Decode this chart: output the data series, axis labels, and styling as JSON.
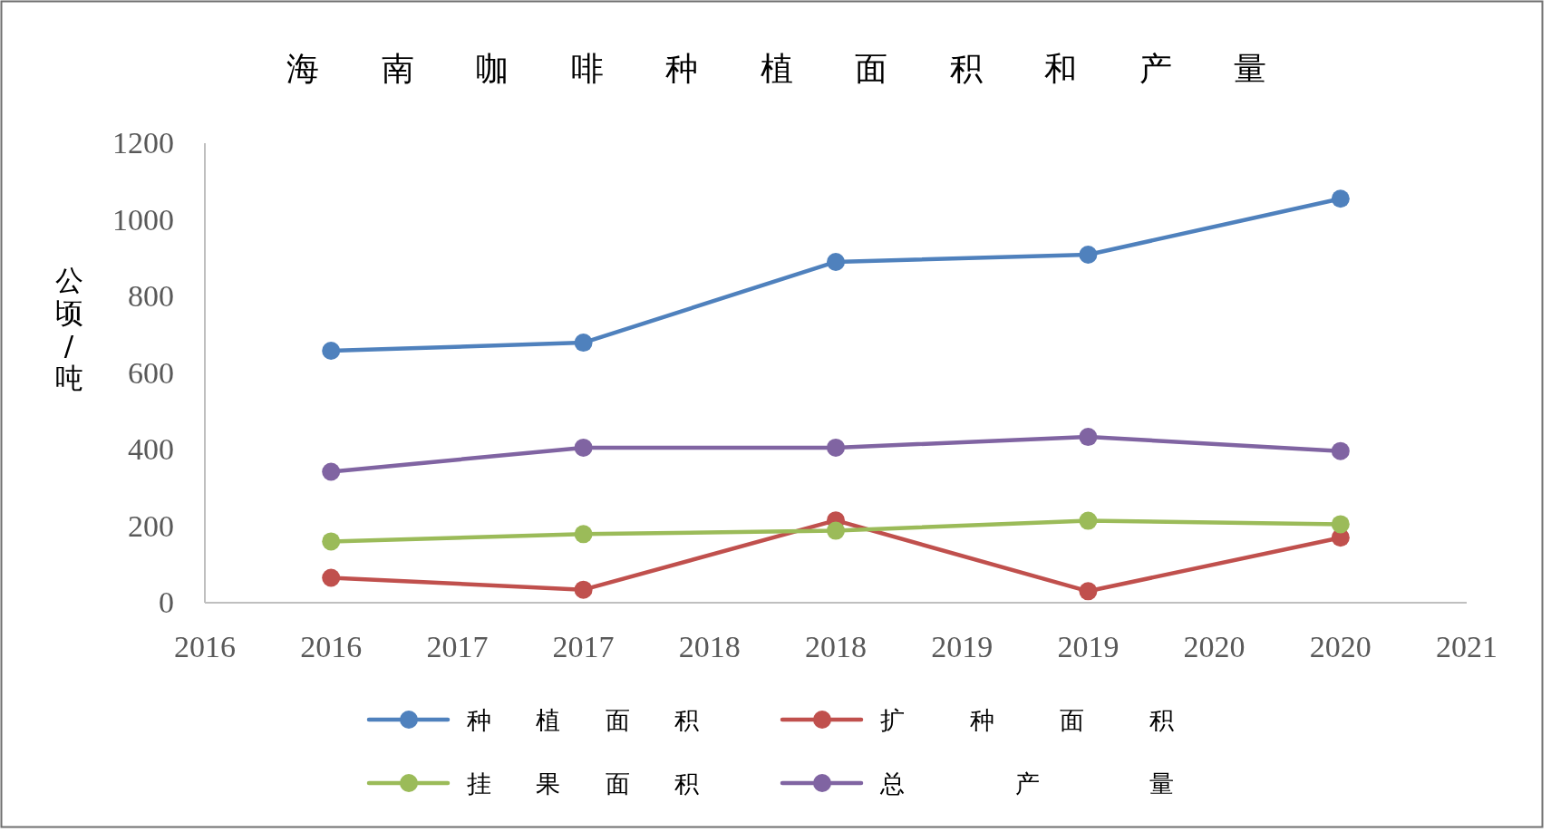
{
  "chart_data": {
    "type": "line",
    "title": "海 南 咖 啡 种 植 面 积 和 产 量",
    "ylabel": "公顷/吨",
    "x": [
      2016,
      2017,
      2018,
      2019,
      2020
    ],
    "xlim": [
      2015.5,
      2020.5
    ],
    "xticks": [
      {
        "value": 2015.5,
        "label": "2016"
      },
      2016,
      {
        "value": 2016.5,
        "label": "2017"
      },
      2017,
      {
        "value": 2017.5,
        "label": "2018"
      },
      2018,
      {
        "value": 2018.5,
        "label": "2019"
      },
      2019,
      {
        "value": 2019.5,
        "label": "2020"
      },
      2020,
      {
        "value": 2020.5,
        "label": "2021"
      }
    ],
    "ylim": [
      0,
      1200
    ],
    "yticks": [
      0,
      200,
      400,
      600,
      800,
      1000,
      1200
    ],
    "series": [
      {
        "name": "种 植 面 积",
        "color": "#4f81bd",
        "values": [
          658,
          679,
          890,
          909,
          1055
        ]
      },
      {
        "name": "扩 种 面 积",
        "color": "#c0504d",
        "values": [
          65,
          34,
          215,
          30,
          170
        ]
      },
      {
        "name": "挂 果 面 积",
        "color": "#9bbb59",
        "values": [
          160,
          179,
          188,
          214,
          205
        ]
      },
      {
        "name": "总 产 量",
        "color": "#8064a2",
        "values": [
          342,
          405,
          405,
          433,
          396
        ]
      }
    ],
    "legend": "bottom",
    "marker": "circle",
    "line_style": "solid",
    "grid": false
  }
}
